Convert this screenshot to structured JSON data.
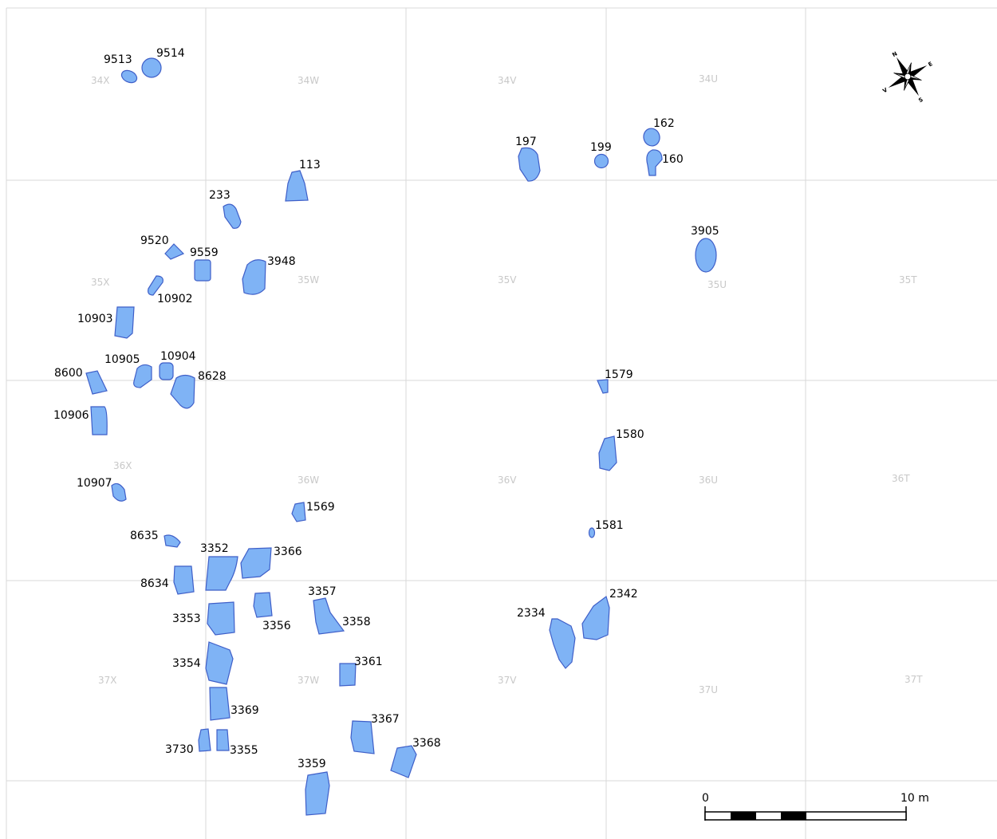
{
  "grid": {
    "labels": [
      "34X",
      "34W",
      "34V",
      "34U",
      "35X",
      "35W",
      "35V",
      "35U",
      "35T",
      "36X",
      "36W",
      "36V",
      "36U",
      "36T",
      "37X",
      "37W",
      "37V",
      "37U",
      "37T"
    ]
  },
  "features": [
    {
      "id": "9513"
    },
    {
      "id": "9514"
    },
    {
      "id": "113"
    },
    {
      "id": "233"
    },
    {
      "id": "9520"
    },
    {
      "id": "9559"
    },
    {
      "id": "3948"
    },
    {
      "id": "10902"
    },
    {
      "id": "10903"
    },
    {
      "id": "10905"
    },
    {
      "id": "10904"
    },
    {
      "id": "8600"
    },
    {
      "id": "8628"
    },
    {
      "id": "10906"
    },
    {
      "id": "10907"
    },
    {
      "id": "8635"
    },
    {
      "id": "3352"
    },
    {
      "id": "3366"
    },
    {
      "id": "8634"
    },
    {
      "id": "3353"
    },
    {
      "id": "3356"
    },
    {
      "id": "3357"
    },
    {
      "id": "3358"
    },
    {
      "id": "3354"
    },
    {
      "id": "3361"
    },
    {
      "id": "3369"
    },
    {
      "id": "3367"
    },
    {
      "id": "3730"
    },
    {
      "id": "3355"
    },
    {
      "id": "3368"
    },
    {
      "id": "3359"
    },
    {
      "id": "1569"
    },
    {
      "id": "197"
    },
    {
      "id": "199"
    },
    {
      "id": "162"
    },
    {
      "id": "160"
    },
    {
      "id": "3905"
    },
    {
      "id": "1579"
    },
    {
      "id": "1580"
    },
    {
      "id": "1581"
    },
    {
      "id": "2334"
    },
    {
      "id": "2342"
    }
  ],
  "scale_bar": {
    "start_label": "0",
    "end_label": "10 m"
  },
  "compass": {
    "labels": [
      "N",
      "E",
      "S",
      "V"
    ]
  },
  "colors": {
    "feature_fill": "#7fb3f5",
    "feature_stroke": "#3f5fc8",
    "grid": "#d9d9d9"
  }
}
